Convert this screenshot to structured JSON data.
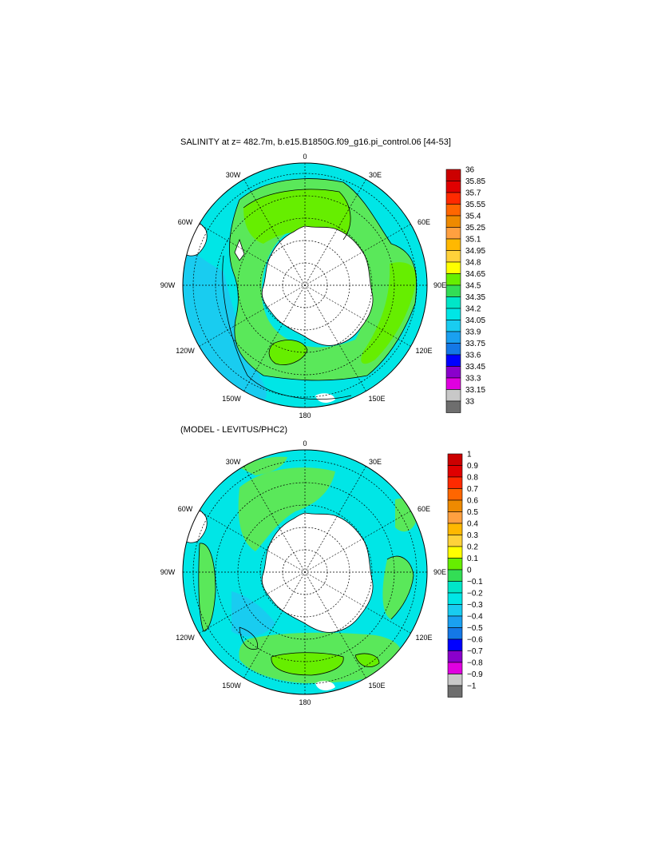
{
  "figure": {
    "top_title": "SALINITY at z= 482.7m, b.e15.B1850G.f09_g16.pi_control.06 [44-53]",
    "bottom_title": "(MODEL - LEVITUS/PHC2)",
    "lon_labels": {
      "n": "0",
      "ne": "30E",
      "e1": "60E",
      "e": "90E",
      "se1": "120E",
      "se": "150E",
      "s": "180",
      "sw": "150W",
      "sw1": "120W",
      "w": "90W",
      "nw1": "60W",
      "nw": "30W"
    }
  },
  "colors": {
    "ocean_cyan": "#00e6e6",
    "ocean_light": "#19ccf0",
    "green": "#5ae85a",
    "light_green": "#66ee00",
    "land": "#ffffff",
    "line": "#000000"
  },
  "top_colorbar": {
    "labels": [
      "36",
      "35.85",
      "35.7",
      "35.55",
      "35.4",
      "35.25",
      "35.1",
      "34.95",
      "34.8",
      "34.65",
      "34.5",
      "34.35",
      "34.2",
      "34.05",
      "33.9",
      "33.75",
      "33.6",
      "33.45",
      "33.3",
      "33.15",
      "33"
    ],
    "colors": [
      "#cc0000",
      "#e00000",
      "#ff2a00",
      "#ff6600",
      "#ee8a00",
      "#ffa040",
      "#ffb800",
      "#ffd23a",
      "#ffff00",
      "#66ee00",
      "#33dd55",
      "#00e6c8",
      "#00e6e6",
      "#19ccf0",
      "#1aa0f0",
      "#1478e6",
      "#0000ff",
      "#8a00cc",
      "#e000e0",
      "#c8c8c8",
      "#6e6e6e"
    ]
  },
  "bottom_colorbar": {
    "labels": [
      "1",
      "0.9",
      "0.8",
      "0.7",
      "0.6",
      "0.5",
      "0.4",
      "0.3",
      "0.2",
      "0.1",
      "0",
      "−0.1",
      "−0.2",
      "−0.3",
      "−0.4",
      "−0.5",
      "−0.6",
      "−0.7",
      "−0.8",
      "−0.9",
      "−1"
    ],
    "colors": [
      "#cc0000",
      "#e00000",
      "#ff2a00",
      "#ff6600",
      "#ee8a00",
      "#ffa040",
      "#ffb800",
      "#ffd23a",
      "#ffff00",
      "#66ee00",
      "#33dd55",
      "#00e6c8",
      "#00e6e6",
      "#19ccf0",
      "#1aa0f0",
      "#1478e6",
      "#0000ff",
      "#8a00cc",
      "#e000e0",
      "#c8c8c8",
      "#6e6e6e"
    ]
  }
}
